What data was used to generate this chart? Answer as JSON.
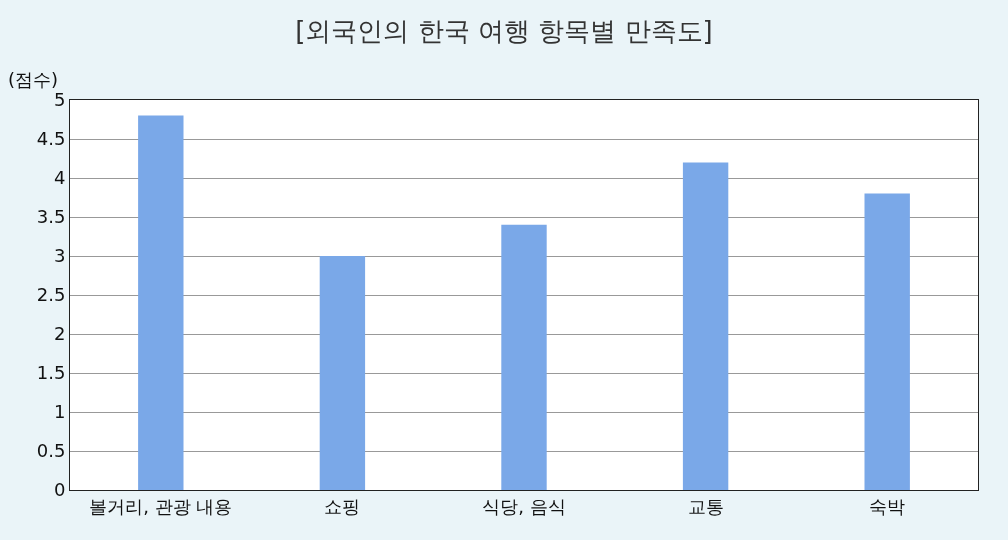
{
  "chart_data": {
    "type": "bar",
    "title": "[외국인의 한국 여행 항목별 만족도]",
    "ylabel": "(점수)",
    "categories": [
      "볼거리, 관광 내용",
      "쇼핑",
      "식당, 음식",
      "교통",
      "숙박"
    ],
    "values": [
      4.8,
      3.0,
      3.4,
      4.2,
      3.8
    ],
    "color": "#7aa8e8",
    "ylim": [
      0,
      5
    ],
    "yticks": [
      0,
      0.5,
      1,
      1.5,
      2,
      2.5,
      3,
      3.5,
      4,
      4.5,
      5
    ],
    "grid": "y"
  }
}
